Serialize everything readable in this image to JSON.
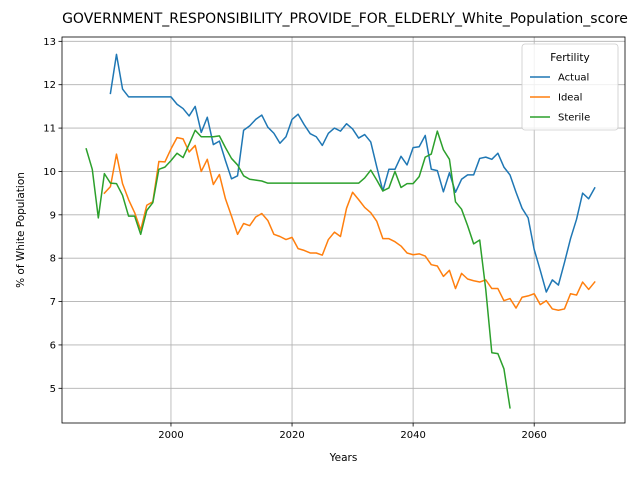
{
  "chart_data": {
    "type": "line",
    "title": "GOVERNMENT_RESPONSIBILITY_PROVIDE_FOR_ELDERLY_White_Population_score",
    "xlabel": "Years",
    "ylabel": "% of White Population",
    "xlim": [
      1982,
      2075
    ],
    "ylim": [
      4.2,
      13.1
    ],
    "xticks": [
      2000,
      2020,
      2040,
      2060
    ],
    "yticks": [
      5,
      6,
      7,
      8,
      9,
      10,
      11,
      12,
      13
    ],
    "grid": true,
    "legend": {
      "title": "Fertility",
      "position": "top-right"
    },
    "series": [
      {
        "name": "Actual",
        "color": "#1f77b4",
        "x": [
          1990,
          1991,
          1992,
          1993,
          1994,
          1995,
          1996,
          1997,
          1998,
          1999,
          2000,
          2001,
          2002,
          2003,
          2004,
          2005,
          2006,
          2007,
          2008,
          2009,
          2010,
          2011,
          2012,
          2013,
          2014,
          2015,
          2016,
          2017,
          2018,
          2019,
          2020,
          2021,
          2022,
          2023,
          2024,
          2025,
          2026,
          2027,
          2028,
          2029,
          2030,
          2031,
          2032,
          2033,
          2034,
          2035,
          2036,
          2037,
          2038,
          2039,
          2040,
          2041,
          2042,
          2043,
          2044,
          2045,
          2046,
          2047,
          2048,
          2049,
          2050,
          2051,
          2052,
          2053,
          2054,
          2055,
          2056,
          2057,
          2058,
          2059,
          2060,
          2061,
          2062,
          2063,
          2064,
          2065,
          2066,
          2067,
          2068,
          2069,
          2070
        ],
        "y": [
          11.8,
          12.7,
          11.9,
          11.72,
          11.72,
          11.72,
          11.72,
          11.72,
          11.72,
          11.72,
          11.72,
          11.55,
          11.45,
          11.28,
          11.5,
          10.9,
          11.25,
          10.62,
          10.7,
          10.25,
          9.83,
          9.9,
          10.95,
          11.05,
          11.2,
          11.3,
          11.02,
          10.88,
          10.65,
          10.8,
          11.2,
          11.32,
          11.08,
          10.87,
          10.8,
          10.6,
          10.88,
          11.0,
          10.93,
          11.1,
          10.98,
          10.77,
          10.85,
          10.68,
          10.1,
          9.55,
          10.05,
          10.05,
          10.35,
          10.15,
          10.55,
          10.57,
          10.83,
          10.05,
          10.02,
          9.53,
          9.97,
          9.52,
          9.82,
          9.92,
          9.92,
          10.3,
          10.33,
          10.28,
          10.42,
          10.1,
          9.92,
          9.52,
          9.15,
          8.93,
          8.2,
          7.72,
          7.22,
          7.5,
          7.38,
          7.9,
          8.45,
          8.9,
          9.5,
          9.37,
          9.62
        ]
      },
      {
        "name": "Ideal",
        "color": "#ff7f0e",
        "x": [
          1989,
          1990,
          1991,
          1992,
          1993,
          1994,
          1995,
          1996,
          1997,
          1998,
          1999,
          2000,
          2001,
          2002,
          2003,
          2004,
          2005,
          2006,
          2007,
          2008,
          2009,
          2010,
          2011,
          2012,
          2013,
          2014,
          2015,
          2016,
          2017,
          2018,
          2019,
          2020,
          2021,
          2022,
          2023,
          2024,
          2025,
          2026,
          2027,
          2028,
          2029,
          2030,
          2031,
          2032,
          2033,
          2034,
          2035,
          2036,
          2037,
          2038,
          2039,
          2040,
          2041,
          2042,
          2043,
          2044,
          2045,
          2046,
          2047,
          2048,
          2049,
          2050,
          2051,
          2052,
          2053,
          2054,
          2055,
          2056,
          2057,
          2058,
          2059,
          2060,
          2061,
          2062,
          2063,
          2064,
          2065,
          2066,
          2067,
          2068,
          2069,
          2070
        ],
        "y": [
          9.5,
          9.65,
          10.4,
          9.72,
          9.35,
          9.05,
          8.65,
          9.22,
          9.3,
          10.23,
          10.22,
          10.52,
          10.78,
          10.75,
          10.45,
          10.6,
          10.0,
          10.28,
          9.7,
          9.93,
          9.37,
          8.97,
          8.55,
          8.8,
          8.75,
          8.95,
          9.03,
          8.87,
          8.55,
          8.5,
          8.43,
          8.48,
          8.22,
          8.18,
          8.12,
          8.12,
          8.07,
          8.43,
          8.6,
          8.5,
          9.15,
          9.52,
          9.35,
          9.17,
          9.05,
          8.85,
          8.45,
          8.45,
          8.38,
          8.28,
          8.12,
          8.08,
          8.1,
          8.05,
          7.85,
          7.82,
          7.58,
          7.72,
          7.3,
          7.65,
          7.52,
          7.48,
          7.45,
          7.5,
          7.3,
          7.3,
          7.02,
          7.07,
          6.85,
          7.1,
          7.13,
          7.18,
          6.93,
          7.02,
          6.83,
          6.8,
          6.83,
          7.18,
          7.15,
          7.45,
          7.28,
          7.45
        ]
      },
      {
        "name": "Sterile",
        "color": "#2ca02c",
        "x": [
          1986,
          1987,
          1988,
          1989,
          1990,
          1991,
          1992,
          1993,
          1994,
          1995,
          1996,
          1997,
          1998,
          1999,
          2000,
          2001,
          2002,
          2003,
          2004,
          2005,
          2006,
          2007,
          2008,
          2009,
          2010,
          2011,
          2012,
          2013,
          2014,
          2015,
          2016,
          2017,
          2018,
          2019,
          2020,
          2021,
          2022,
          2023,
          2024,
          2025,
          2026,
          2027,
          2028,
          2029,
          2030,
          2031,
          2032,
          2033,
          2034,
          2035,
          2036,
          2037,
          2038,
          2039,
          2040,
          2041,
          2042,
          2043,
          2044,
          2045,
          2046,
          2047,
          2048,
          2049,
          2050,
          2051,
          2052,
          2053,
          2054,
          2055,
          2056
        ],
        "y": [
          10.52,
          10.05,
          8.93,
          9.95,
          9.73,
          9.72,
          9.45,
          8.97,
          8.97,
          8.55,
          9.1,
          9.28,
          10.05,
          10.1,
          10.25,
          10.42,
          10.32,
          10.63,
          10.95,
          10.8,
          10.8,
          10.8,
          10.82,
          10.55,
          10.3,
          10.15,
          9.9,
          9.82,
          9.8,
          9.78,
          9.73,
          9.73,
          9.73,
          9.73,
          9.73,
          9.73,
          9.73,
          9.73,
          9.73,
          9.73,
          9.73,
          9.73,
          9.73,
          9.73,
          9.73,
          9.73,
          9.85,
          10.03,
          9.8,
          9.55,
          9.62,
          10.0,
          9.63,
          9.72,
          9.72,
          9.88,
          10.33,
          10.4,
          10.93,
          10.5,
          10.28,
          9.3,
          9.13,
          8.75,
          8.33,
          8.42,
          7.28,
          5.82,
          5.8,
          5.45,
          4.55
        ]
      }
    ]
  }
}
